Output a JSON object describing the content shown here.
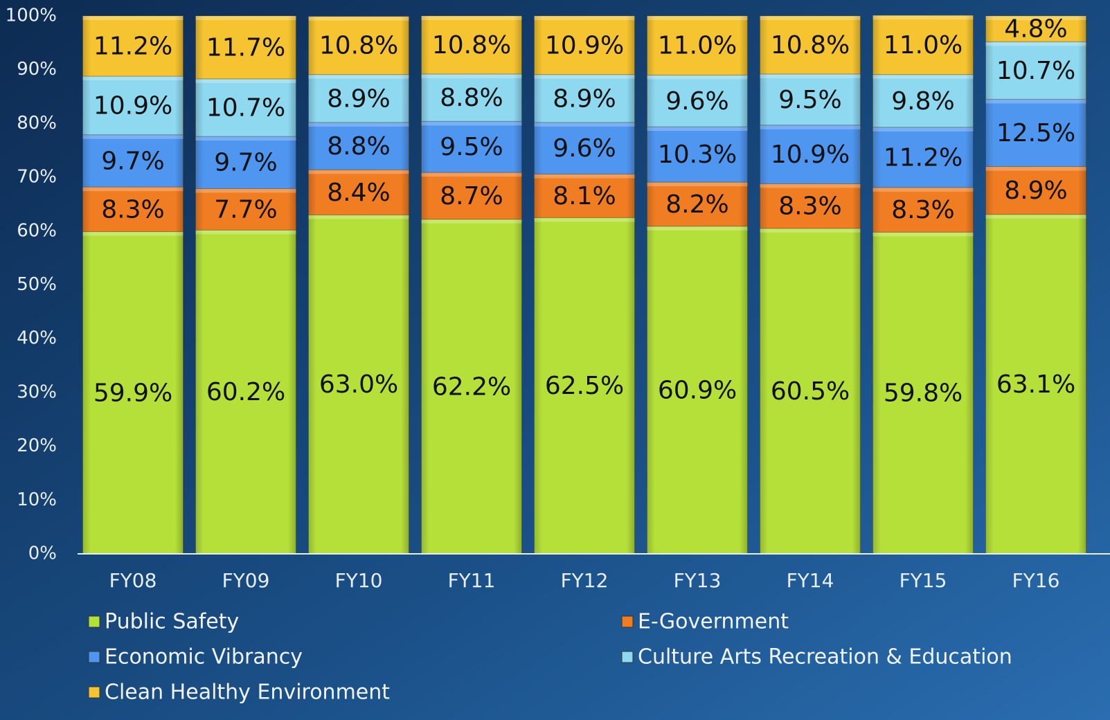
{
  "chart_data": {
    "type": "stacked_bar",
    "categories": [
      "FY08",
      "FY09",
      "FY10",
      "FY11",
      "FY12",
      "FY13",
      "FY14",
      "FY15",
      "FY16"
    ],
    "series": [
      {
        "name": "Public Safety",
        "color": "#b5e03a",
        "values": [
          59.9,
          60.2,
          63.0,
          62.2,
          62.5,
          60.9,
          60.5,
          59.8,
          63.1
        ],
        "value_labels": [
          "59.9%",
          "60.2%",
          "63.0%",
          "62.2%",
          "62.5%",
          "60.9%",
          "60.5%",
          "59.8%",
          "63.1%"
        ]
      },
      {
        "name": "E-Government",
        "color": "#f07d22",
        "values": [
          8.3,
          7.7,
          8.4,
          8.7,
          8.1,
          8.2,
          8.3,
          8.3,
          8.9
        ],
        "value_labels": [
          "8.3%",
          "7.7%",
          "8.4%",
          "8.7%",
          "8.1%",
          "8.2%",
          "8.3%",
          "8.3%",
          "8.9%"
        ]
      },
      {
        "name": "Economic Vibrancy",
        "color": "#4f96f0",
        "values": [
          9.7,
          9.7,
          8.8,
          9.5,
          9.6,
          10.3,
          10.9,
          11.2,
          12.5
        ],
        "value_labels": [
          "9.7%",
          "9.7%",
          "8.8%",
          "9.5%",
          "9.6%",
          "10.3%",
          "10.9%",
          "11.2%",
          "12.5%"
        ]
      },
      {
        "name": "Culture Arts Recreation & Education",
        "color": "#8ed8f0",
        "values": [
          10.9,
          10.7,
          8.9,
          8.8,
          8.9,
          9.6,
          9.5,
          9.8,
          10.7
        ],
        "value_labels": [
          "10.9%",
          "10.7%",
          "8.9%",
          "8.8%",
          "8.9%",
          "9.6%",
          "9.5%",
          "9.8%",
          "10.7%"
        ]
      },
      {
        "name": "Clean Healthy Environment",
        "color": "#f5c430",
        "values": [
          11.2,
          11.7,
          10.8,
          10.8,
          10.9,
          11.0,
          10.8,
          11.0,
          4.8
        ],
        "value_labels": [
          "11.2%",
          "11.7%",
          "10.8%",
          "10.8%",
          "10.9%",
          "11.0%",
          "10.8%",
          "11.0%",
          "4.8%"
        ]
      }
    ],
    "ylim": [
      0,
      100
    ],
    "yticks": [
      {
        "value": 0,
        "label": "0%"
      },
      {
        "value": 10,
        "label": "10%"
      },
      {
        "value": 20,
        "label": "20%"
      },
      {
        "value": 30,
        "label": "30%"
      },
      {
        "value": 40,
        "label": "40%"
      },
      {
        "value": 50,
        "label": "50%"
      },
      {
        "value": 60,
        "label": "60%"
      },
      {
        "value": 70,
        "label": "70%"
      },
      {
        "value": 80,
        "label": "80%"
      },
      {
        "value": 90,
        "label": "90%"
      },
      {
        "value": 100,
        "label": "100%"
      }
    ],
    "legend": "bottom"
  }
}
